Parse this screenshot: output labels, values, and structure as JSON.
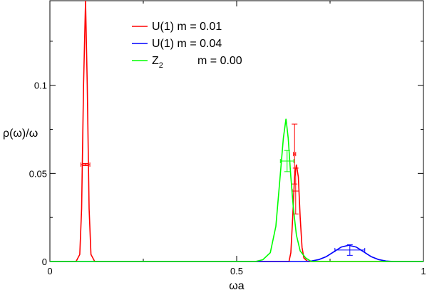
{
  "chart_data": {
    "type": "line",
    "title": "",
    "xlabel": "ωa",
    "ylabel": "ρ(ω)/ω",
    "xlim": [
      0,
      1
    ],
    "ylim": [
      0,
      0.148
    ],
    "x_ticks": [
      {
        "value": 0,
        "label": "0"
      },
      {
        "value": 0.5,
        "label": "0.5"
      },
      {
        "value": 1,
        "label": "1"
      }
    ],
    "y_ticks": [
      {
        "value": 0,
        "label": "0"
      },
      {
        "value": 0.05,
        "label": "0.05"
      },
      {
        "value": 0.1,
        "label": "0.1"
      }
    ],
    "grid": false,
    "legend_position": "top-center",
    "series": [
      {
        "name": "U(1) m = 0.01",
        "legend_main": "U(1) m = 0.01",
        "legend_sub": "",
        "color": "#ff0000",
        "points": [
          [
            0,
            0
          ],
          [
            0.07,
            0
          ],
          [
            0.08,
            0.004
          ],
          [
            0.085,
            0.03
          ],
          [
            0.09,
            0.1
          ],
          [
            0.0955,
            0.148
          ],
          [
            0.1,
            0.1
          ],
          [
            0.105,
            0.03
          ],
          [
            0.11,
            0.004
          ],
          [
            0.12,
            0
          ],
          [
            0.64,
            0
          ],
          [
            0.645,
            0.005
          ],
          [
            0.65,
            0.025
          ],
          [
            0.655,
            0.048
          ],
          [
            0.66,
            0.055
          ],
          [
            0.665,
            0.048
          ],
          [
            0.67,
            0.025
          ],
          [
            0.675,
            0.008
          ],
          [
            0.68,
            0.002
          ],
          [
            0.69,
            0
          ],
          [
            1,
            0
          ]
        ],
        "error_points": [
          {
            "x": 0.095,
            "y": 0.055,
            "xerr": 0.012,
            "yerr": 0.0006
          },
          {
            "x": 0.655,
            "y": 0.061,
            "xerr": 0.003,
            "yerr": 0.017
          },
          {
            "x": 0.658,
            "y": 0.04,
            "xerr": 0.009,
            "yerr": 0.013
          }
        ]
      },
      {
        "name": "U(1) m = 0.04",
        "legend_main": "U(1) m = 0.04",
        "legend_sub": "",
        "color": "#0000ff",
        "points": [
          [
            0,
            0
          ],
          [
            0.68,
            0
          ],
          [
            0.7,
            0.0003
          ],
          [
            0.72,
            0.0011
          ],
          [
            0.74,
            0.0028
          ],
          [
            0.76,
            0.0055
          ],
          [
            0.78,
            0.0082
          ],
          [
            0.8,
            0.0092
          ],
          [
            0.82,
            0.0082
          ],
          [
            0.84,
            0.0055
          ],
          [
            0.86,
            0.0028
          ],
          [
            0.88,
            0.0011
          ],
          [
            0.9,
            0.0003
          ],
          [
            0.92,
            0
          ],
          [
            1,
            0
          ]
        ],
        "error_points": [
          {
            "x": 0.803,
            "y": 0.0065,
            "xerr": 0.04,
            "yerr": 0.003
          }
        ]
      },
      {
        "name": "Z2 m = 0.00",
        "legend_main": "Z",
        "legend_sub": "2",
        "legend_suffix": "m = 0.00",
        "color": "#00ff00",
        "points": [
          [
            0,
            0
          ],
          [
            0.55,
            0
          ],
          [
            0.57,
            0.001
          ],
          [
            0.59,
            0.005
          ],
          [
            0.605,
            0.02
          ],
          [
            0.615,
            0.045
          ],
          [
            0.625,
            0.07
          ],
          [
            0.632,
            0.081
          ],
          [
            0.638,
            0.07
          ],
          [
            0.645,
            0.048
          ],
          [
            0.652,
            0.03
          ],
          [
            0.66,
            0.015
          ],
          [
            0.67,
            0.006
          ],
          [
            0.685,
            0.002
          ],
          [
            0.7,
            0
          ],
          [
            1,
            0
          ]
        ],
        "error_points": [
          {
            "x": 0.635,
            "y": 0.057,
            "xerr": 0.018,
            "yerr": 0.006
          }
        ]
      }
    ]
  }
}
